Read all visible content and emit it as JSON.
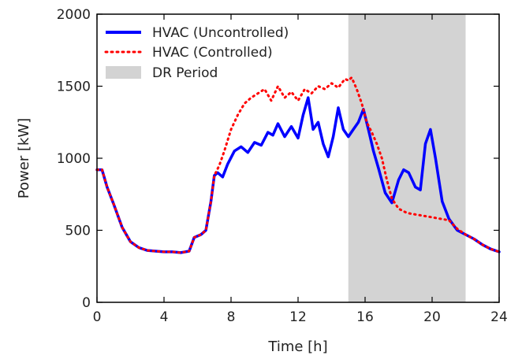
{
  "chart_data": {
    "type": "line",
    "title": "",
    "xlabel": "Time [h]",
    "ylabel": "Power [kW]",
    "xlim": [
      0,
      24
    ],
    "ylim": [
      0,
      2000
    ],
    "xticks": [
      0,
      4,
      8,
      12,
      16,
      20,
      24
    ],
    "yticks": [
      0,
      500,
      1000,
      1500,
      2000
    ],
    "grid": false,
    "legend": "top-left",
    "shaded_regions": [
      {
        "name": "DR Period",
        "x_start": 15,
        "x_end": 22,
        "color": "#d3d3d3"
      }
    ],
    "series": [
      {
        "name": "HVAC (Uncontrolled)",
        "color": "#0000ff",
        "style": "solid",
        "x": [
          0,
          0.3,
          0.6,
          1.0,
          1.5,
          2.0,
          2.5,
          3.0,
          3.5,
          4.0,
          4.5,
          5.0,
          5.5,
          5.8,
          6.2,
          6.5,
          6.8,
          7.0,
          7.2,
          7.5,
          7.8,
          8.2,
          8.6,
          9.0,
          9.4,
          9.8,
          10.2,
          10.5,
          10.8,
          11.2,
          11.6,
          12.0,
          12.3,
          12.6,
          12.9,
          13.2,
          13.5,
          13.8,
          14.1,
          14.4,
          14.7,
          15.0,
          15.3,
          15.6,
          15.9,
          16.2,
          16.5,
          16.8,
          17.2,
          17.6,
          18.0,
          18.3,
          18.6,
          19.0,
          19.3,
          19.6,
          19.9,
          20.2,
          20.6,
          21.0,
          21.5,
          22.0,
          22.5,
          23.0,
          23.5,
          24.0
        ],
        "y": [
          920,
          920,
          800,
          680,
          520,
          420,
          380,
          360,
          355,
          350,
          350,
          345,
          355,
          450,
          470,
          500,
          700,
          880,
          900,
          870,
          960,
          1050,
          1080,
          1040,
          1110,
          1090,
          1180,
          1160,
          1240,
          1150,
          1220,
          1140,
          1300,
          1420,
          1200,
          1250,
          1100,
          1010,
          1150,
          1350,
          1200,
          1150,
          1200,
          1250,
          1340,
          1200,
          1050,
          930,
          760,
          690,
          850,
          920,
          900,
          800,
          780,
          1100,
          1200,
          1000,
          700,
          580,
          500,
          470,
          440,
          400,
          370,
          350
        ]
      },
      {
        "name": "HVAC (Controlled)",
        "color": "#ff0000",
        "style": "dotted",
        "x": [
          0,
          0.3,
          0.6,
          1.0,
          1.5,
          2.0,
          2.5,
          3.0,
          3.5,
          4.0,
          4.5,
          5.0,
          5.5,
          5.8,
          6.2,
          6.5,
          6.8,
          7.0,
          7.3,
          7.6,
          8.0,
          8.4,
          8.8,
          9.2,
          9.6,
          10.0,
          10.4,
          10.8,
          11.2,
          11.6,
          12.0,
          12.4,
          12.8,
          13.2,
          13.6,
          14.0,
          14.4,
          14.8,
          15.0,
          15.2,
          15.5,
          15.8,
          16.1,
          16.4,
          16.7,
          17.0,
          17.3,
          17.6,
          18.0,
          18.5,
          19.0,
          19.5,
          20.0,
          20.5,
          21.0,
          21.5,
          22.0,
          22.5,
          23.0,
          23.5,
          24.0
        ],
        "y": [
          920,
          920,
          800,
          680,
          520,
          420,
          380,
          360,
          355,
          350,
          350,
          345,
          355,
          450,
          470,
          500,
          700,
          880,
          950,
          1050,
          1200,
          1300,
          1380,
          1420,
          1450,
          1480,
          1400,
          1500,
          1420,
          1460,
          1400,
          1480,
          1450,
          1500,
          1480,
          1520,
          1490,
          1550,
          1540,
          1560,
          1480,
          1380,
          1250,
          1180,
          1100,
          1000,
          850,
          720,
          650,
          620,
          610,
          600,
          590,
          580,
          570,
          510,
          470,
          440,
          400,
          370,
          350
        ]
      }
    ]
  }
}
